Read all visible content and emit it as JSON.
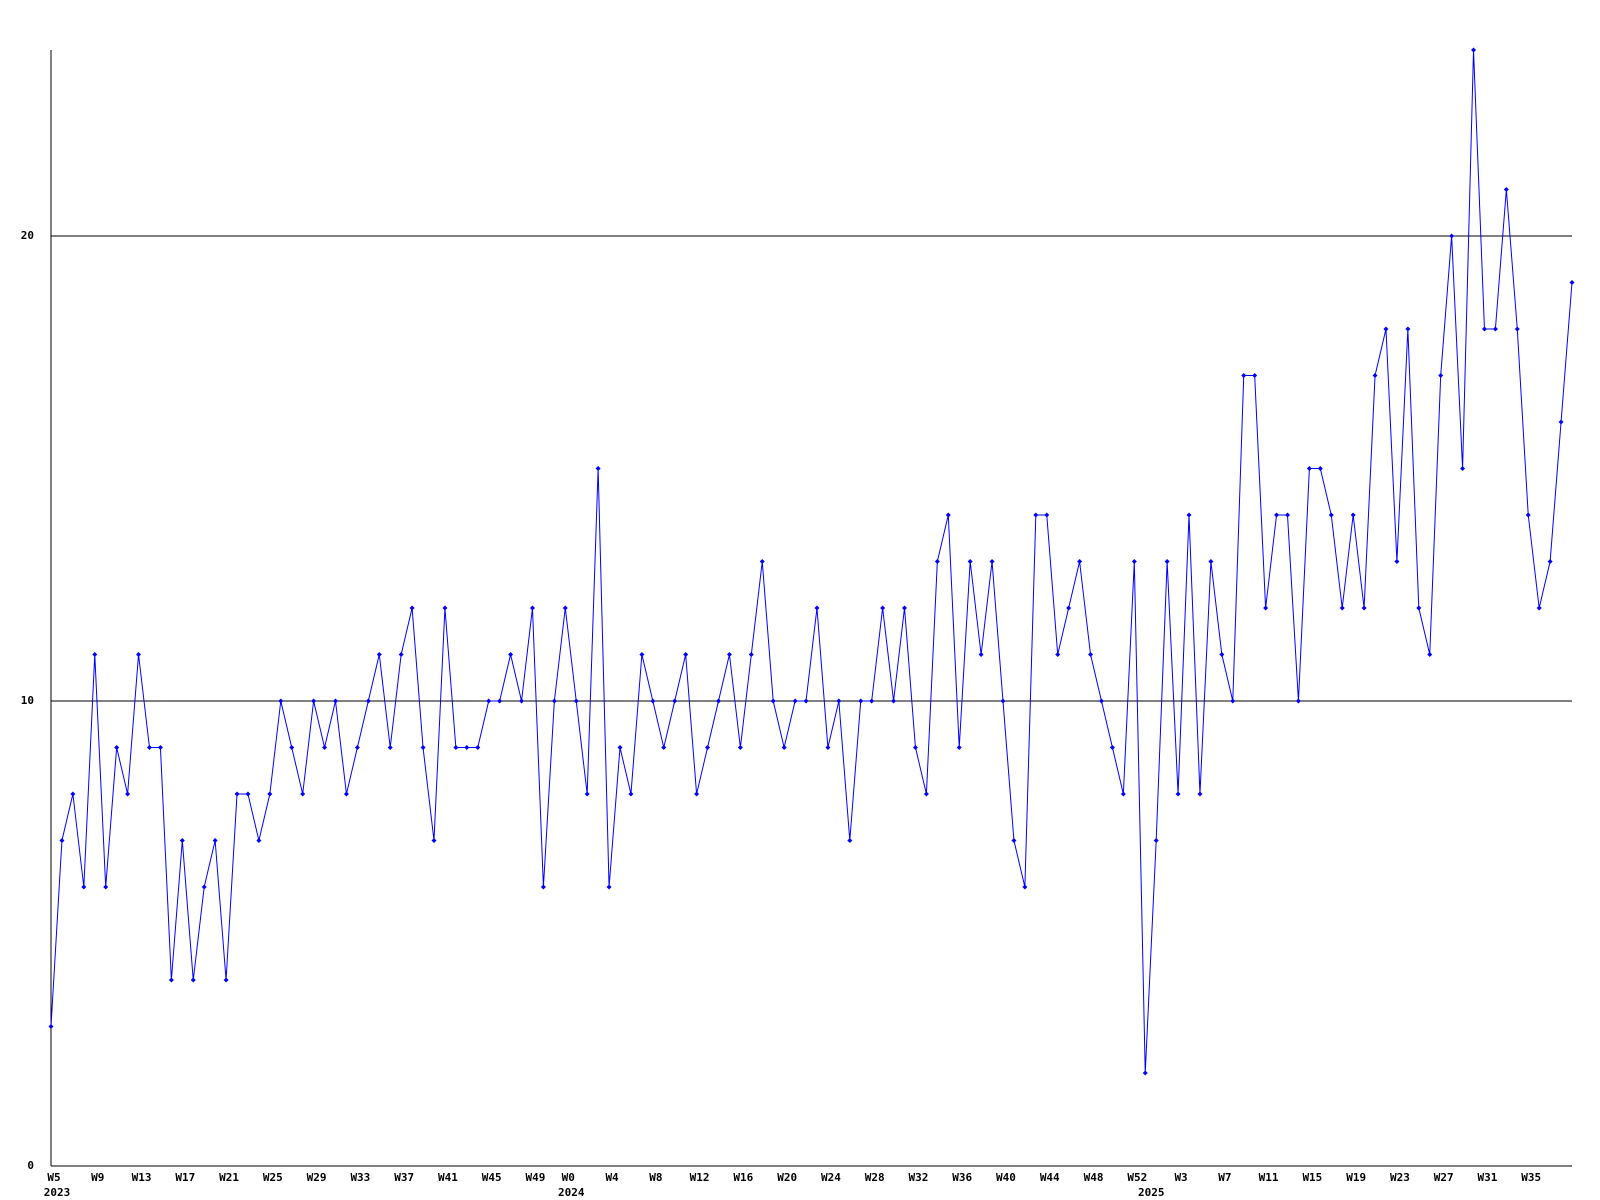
{
  "chart_data": {
    "type": "line",
    "categories": [
      "W5",
      null,
      null,
      null,
      "W9",
      null,
      null,
      null,
      "W13",
      null,
      null,
      null,
      "W17",
      null,
      null,
      null,
      "W21",
      null,
      null,
      null,
      "W25",
      null,
      null,
      null,
      "W29",
      null,
      null,
      null,
      "W33",
      null,
      null,
      null,
      "W37",
      null,
      null,
      null,
      "W41",
      null,
      null,
      null,
      "W45",
      null,
      null,
      null,
      "W49",
      null,
      null,
      "W0",
      null,
      null,
      null,
      "W4",
      null,
      null,
      null,
      "W8",
      null,
      null,
      null,
      "W12",
      null,
      null,
      null,
      "W16",
      null,
      null,
      null,
      "W20",
      null,
      null,
      null,
      "W24",
      null,
      null,
      null,
      "W28",
      null,
      null,
      null,
      "W32",
      null,
      null,
      null,
      "W36",
      null,
      null,
      null,
      "W40",
      null,
      null,
      null,
      "W44",
      null,
      null,
      null,
      "W48",
      null,
      null,
      null,
      "W52",
      null,
      null,
      null,
      "W3",
      null,
      null,
      null,
      "W7",
      null,
      null,
      null,
      "W11",
      null,
      null,
      null,
      "W15",
      null,
      null,
      null,
      "W19",
      null,
      null,
      null,
      "W23",
      null,
      null,
      null,
      "W27",
      null,
      null,
      null,
      "W31",
      null,
      null,
      null,
      "W35",
      null,
      null,
      null,
      null
    ],
    "category_years": [
      "2023",
      null,
      null,
      null,
      null,
      null,
      null,
      null,
      null,
      null,
      null,
      null,
      null,
      null,
      null,
      null,
      null,
      null,
      null,
      null,
      null,
      null,
      null,
      null,
      null,
      null,
      null,
      null,
      null,
      null,
      null,
      null,
      null,
      null,
      null,
      null,
      null,
      null,
      null,
      null,
      null,
      null,
      null,
      null,
      null,
      null,
      null,
      "2024",
      null,
      null,
      null,
      null,
      null,
      null,
      null,
      null,
      null,
      null,
      null,
      null,
      null,
      null,
      null,
      null,
      null,
      null,
      null,
      null,
      null,
      null,
      null,
      null,
      null,
      null,
      null,
      null,
      null,
      null,
      null,
      null,
      null,
      null,
      null,
      null,
      null,
      null,
      null,
      null,
      null,
      null,
      null,
      null,
      null,
      null,
      null,
      null,
      null,
      null,
      null,
      null,
      "2025",
      null,
      null,
      null,
      null,
      null,
      null,
      null,
      null,
      null,
      null,
      null,
      null,
      null,
      null,
      null,
      null,
      null,
      null,
      null,
      null,
      null,
      null,
      null,
      null,
      null,
      null,
      null,
      null,
      null,
      null,
      null,
      null,
      null,
      null,
      null,
      null,
      null,
      null,
      null
    ],
    "series": [
      {
        "color": "#0000ff",
        "values": [
          3,
          7,
          8,
          6,
          11,
          6,
          9,
          8,
          11,
          9,
          9,
          4,
          7,
          4,
          6,
          7,
          4,
          8,
          8,
          7,
          8,
          10,
          9,
          8,
          10,
          9,
          10,
          8,
          9,
          10,
          11,
          9,
          11,
          12,
          9,
          7,
          12,
          9,
          9,
          9,
          10,
          10,
          11,
          10,
          12,
          6,
          10,
          12,
          10,
          8,
          15,
          6,
          9,
          8,
          11,
          10,
          9,
          10,
          11,
          8,
          9,
          10,
          11,
          9,
          11,
          13,
          10,
          9,
          10,
          10,
          12,
          9,
          10,
          7,
          10,
          10,
          12,
          10,
          12,
          9,
          8,
          13,
          14,
          9,
          13,
          11,
          13,
          10,
          7,
          6,
          14,
          14,
          11,
          12,
          13,
          11,
          10,
          9,
          8,
          13,
          2,
          7,
          13,
          8,
          14,
          8,
          13,
          11,
          10,
          17,
          17,
          12,
          14,
          14,
          10,
          15,
          15,
          14,
          12,
          14,
          12,
          17,
          18,
          13,
          18,
          12,
          11,
          17,
          20,
          15,
          24,
          18,
          18,
          21,
          18,
          14,
          12,
          13,
          16,
          19
        ]
      }
    ],
    "ylim": [
      0,
      24
    ],
    "yticks": [
      0,
      10,
      20
    ],
    "grid": true
  }
}
